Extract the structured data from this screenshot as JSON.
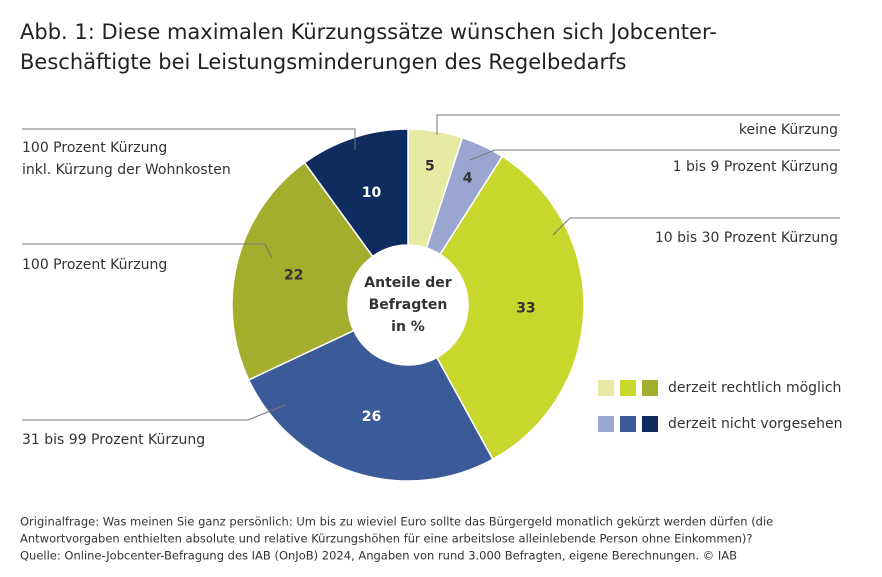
{
  "chart_data": {
    "type": "donut",
    "title": [
      "Abb. 1: Diese maximalen Kürzungssätze wünschen sich Jobcenter-",
      "Beschäftigte bei Leistungsminderungen des Regelbedarfs"
    ],
    "center_label": [
      "Anteile der",
      "Befragten",
      "in %"
    ],
    "categories": [
      [
        "keine Kürzung"
      ],
      [
        "1 bis 9 Prozent Kürzung"
      ],
      [
        "10 bis 30 Prozent Kürzung"
      ],
      [
        "31 bis 99 Prozent Kürzung"
      ],
      [
        "100 Prozent Kürzung"
      ],
      [
        "100 Prozent Kürzung",
        "inkl. Kürzung der Wohnkosten"
      ]
    ],
    "values": [
      5,
      4,
      33,
      26,
      22,
      10
    ],
    "colors": [
      "#e6eaa2",
      "#9aa6d0",
      "#c9d62c",
      "#3a5a98",
      "#a5ad2c",
      "#0e2d5e"
    ],
    "legend": [
      {
        "name": "derzeit rechtlich möglich",
        "colors": [
          "#e6eaa2",
          "#c9d62c",
          "#a5ad2c"
        ]
      },
      {
        "name": "derzeit nicht vorgesehen",
        "colors": [
          "#9aa6d0",
          "#3a5a98",
          "#0e2d5e"
        ]
      }
    ],
    "notes": [
      "Originalfrage: Was meinen Sie ganz persönlich: Um bis zu wieviel Euro sollte das Bürgergeld monatlich gekürzt werden dürfen (die",
      "Antwortvorgaben enthielten absolute und relative Kürzungshöhen für eine arbeitslose alleinlebende Person ohne Einkommen)?",
      "Quelle: Online-Jobcenter-Befragung des IAB (OnJoB) 2024, Angaben von rund 3.000 Befragten, eigene Berechnungen. © IAB"
    ]
  }
}
